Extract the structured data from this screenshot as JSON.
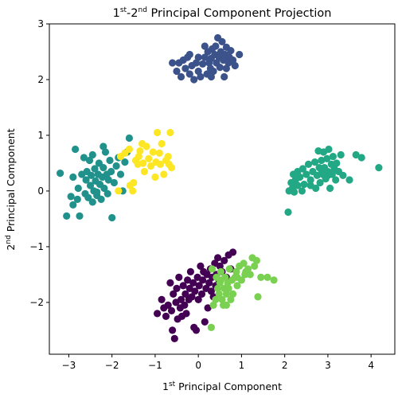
{
  "chart_data": {
    "type": "scatter",
    "title": {
      "p1": "1",
      "s1": "st",
      "p2": "-2",
      "s2": "nd",
      "p3": " Principal Component Projection"
    },
    "xlabel": {
      "pre": "1",
      "sup": "st",
      "post": " Principal Component"
    },
    "ylabel": {
      "pre": "2",
      "sup": "nd",
      "post": " Principal Component"
    },
    "xlim": [
      -3.45,
      4.55
    ],
    "ylim": [
      -2.93,
      3.0
    ],
    "xticks": [
      -3,
      -2,
      -1,
      0,
      1,
      2,
      3,
      4
    ],
    "xtick_labels": [
      "−3",
      "−2",
      "−1",
      "0",
      "1",
      "2",
      "3",
      "4"
    ],
    "yticks": [
      -2,
      -1,
      0,
      1,
      2,
      3
    ],
    "ytick_labels": [
      "−2",
      "−1",
      "0",
      "1",
      "2",
      "3"
    ],
    "grid": false,
    "series": [
      {
        "color": "#3b528b",
        "points": [
          [
            -0.5,
            2.15
          ],
          [
            -0.45,
            2.3
          ],
          [
            -0.4,
            2.05
          ],
          [
            -0.35,
            2.35
          ],
          [
            -0.3,
            2.2
          ],
          [
            -0.25,
            2.4
          ],
          [
            -0.2,
            2.1
          ],
          [
            -0.15,
            2.25
          ],
          [
            -0.1,
            2.0
          ],
          [
            -0.05,
            2.3
          ],
          [
            0.0,
            2.15
          ],
          [
            0.0,
            2.4
          ],
          [
            0.05,
            2.05
          ],
          [
            0.1,
            2.28
          ],
          [
            0.15,
            2.4
          ],
          [
            0.2,
            2.1
          ],
          [
            0.22,
            2.5
          ],
          [
            0.25,
            2.3
          ],
          [
            0.28,
            2.2
          ],
          [
            0.3,
            2.38
          ],
          [
            0.32,
            2.55
          ],
          [
            0.35,
            2.15
          ],
          [
            0.38,
            2.45
          ],
          [
            0.4,
            2.6
          ],
          [
            0.42,
            2.3
          ],
          [
            0.45,
            2.75
          ],
          [
            0.48,
            2.4
          ],
          [
            0.5,
            2.22
          ],
          [
            0.52,
            2.5
          ],
          [
            0.55,
            2.68
          ],
          [
            0.58,
            2.35
          ],
          [
            0.6,
            2.05
          ],
          [
            0.62,
            2.45
          ],
          [
            0.65,
            2.58
          ],
          [
            0.7,
            2.3
          ],
          [
            0.72,
            2.4
          ],
          [
            0.75,
            2.52
          ],
          [
            0.8,
            2.35
          ],
          [
            0.85,
            2.25
          ],
          [
            0.95,
            2.45
          ],
          [
            -0.6,
            2.3
          ],
          [
            0.15,
            2.6
          ],
          [
            -0.2,
            2.45
          ],
          [
            0.65,
            2.2
          ],
          [
            0.3,
            2.05
          ]
        ]
      },
      {
        "color": "#21918c",
        "points": [
          [
            -3.2,
            0.32
          ],
          [
            -3.05,
            -0.45
          ],
          [
            -2.95,
            -0.1
          ],
          [
            -2.9,
            0.25
          ],
          [
            -2.85,
            0.75
          ],
          [
            -2.8,
            -0.15
          ],
          [
            -2.78,
            0.05
          ],
          [
            -2.75,
            -0.45
          ],
          [
            -2.7,
            0.3
          ],
          [
            -2.65,
            0.6
          ],
          [
            -2.62,
            -0.05
          ],
          [
            -2.6,
            0.2
          ],
          [
            -2.58,
            0.35
          ],
          [
            -2.55,
            -0.12
          ],
          [
            -2.52,
            0.55
          ],
          [
            -2.5,
            0.1
          ],
          [
            -2.48,
            0.28
          ],
          [
            -2.45,
            -0.2
          ],
          [
            -2.42,
            0.0
          ],
          [
            -2.4,
            0.4
          ],
          [
            -2.38,
            0.18
          ],
          [
            -2.35,
            -0.08
          ],
          [
            -2.32,
            0.3
          ],
          [
            -2.3,
            0.5
          ],
          [
            -2.28,
            0.12
          ],
          [
            -2.25,
            -0.15
          ],
          [
            -2.22,
            0.25
          ],
          [
            -2.2,
            0.42
          ],
          [
            -2.18,
            0.05
          ],
          [
            -2.15,
            0.7
          ],
          [
            -2.12,
            0.3
          ],
          [
            -2.1,
            -0.05
          ],
          [
            -2.08,
            0.2
          ],
          [
            -2.05,
            0.55
          ],
          [
            -2.02,
            0.35
          ],
          [
            -2.0,
            -0.48
          ],
          [
            -1.95,
            0.15
          ],
          [
            -1.9,
            0.45
          ],
          [
            -1.85,
            0.6
          ],
          [
            -1.8,
            0.3
          ],
          [
            -1.75,
            0.0
          ],
          [
            -1.7,
            0.52
          ],
          [
            -1.65,
            0.7
          ],
          [
            -1.6,
            0.95
          ],
          [
            -2.2,
            0.8
          ],
          [
            -2.45,
            0.65
          ],
          [
            -2.9,
            -0.25
          ],
          [
            -2.35,
            -0.02
          ]
        ]
      },
      {
        "color": "#fde725",
        "points": [
          [
            -1.85,
            0.0
          ],
          [
            -1.8,
            0.62
          ],
          [
            -1.7,
            0.68
          ],
          [
            -1.6,
            0.75
          ],
          [
            -1.58,
            0.1
          ],
          [
            -1.52,
            0.0
          ],
          [
            -1.5,
            0.15
          ],
          [
            -1.45,
            0.55
          ],
          [
            -1.4,
            0.48
          ],
          [
            -1.38,
            0.62
          ],
          [
            -1.35,
            0.72
          ],
          [
            -1.3,
            0.85
          ],
          [
            -1.28,
            0.5
          ],
          [
            -1.25,
            0.35
          ],
          [
            -1.2,
            0.8
          ],
          [
            -1.15,
            0.58
          ],
          [
            -1.1,
            0.45
          ],
          [
            -1.05,
            0.7
          ],
          [
            -1.0,
            0.25
          ],
          [
            -0.98,
            0.52
          ],
          [
            -0.95,
            1.05
          ],
          [
            -0.9,
            0.68
          ],
          [
            -0.88,
            0.48
          ],
          [
            -0.85,
            0.85
          ],
          [
            -0.8,
            0.3
          ],
          [
            -0.75,
            0.55
          ],
          [
            -0.7,
            0.62
          ],
          [
            -0.68,
            0.48
          ],
          [
            -0.65,
            1.05
          ],
          [
            -0.62,
            0.42
          ]
        ]
      },
      {
        "color": "#22a884",
        "points": [
          [
            2.08,
            -0.38
          ],
          [
            2.1,
            0.0
          ],
          [
            2.15,
            0.15
          ],
          [
            2.18,
            0.05
          ],
          [
            2.2,
            0.3
          ],
          [
            2.22,
            -0.02
          ],
          [
            2.25,
            0.2
          ],
          [
            2.3,
            0.1
          ],
          [
            2.35,
            0.25
          ],
          [
            2.4,
            0.0
          ],
          [
            2.42,
            0.4
          ],
          [
            2.45,
            0.12
          ],
          [
            2.5,
            0.3
          ],
          [
            2.55,
            0.48
          ],
          [
            2.6,
            0.2
          ],
          [
            2.65,
            0.35
          ],
          [
            2.7,
            0.52
          ],
          [
            2.72,
            0.05
          ],
          [
            2.75,
            0.28
          ],
          [
            2.78,
            0.72
          ],
          [
            2.8,
            0.42
          ],
          [
            2.82,
            0.15
          ],
          [
            2.85,
            0.55
          ],
          [
            2.88,
            0.3
          ],
          [
            2.9,
            0.7
          ],
          [
            2.92,
            0.42
          ],
          [
            2.95,
            0.22
          ],
          [
            2.98,
            0.58
          ],
          [
            3.0,
            0.35
          ],
          [
            3.02,
            0.75
          ],
          [
            3.05,
            0.05
          ],
          [
            3.08,
            0.48
          ],
          [
            3.1,
            0.3
          ],
          [
            3.12,
            0.62
          ],
          [
            3.15,
            0.4
          ],
          [
            3.18,
            0.2
          ],
          [
            3.2,
            0.5
          ],
          [
            3.25,
            0.35
          ],
          [
            3.3,
            0.65
          ],
          [
            3.35,
            0.28
          ],
          [
            3.5,
            0.2
          ],
          [
            3.65,
            0.65
          ],
          [
            3.78,
            0.6
          ],
          [
            4.18,
            0.42
          ],
          [
            2.3,
            0.35
          ],
          [
            2.6,
            0.1
          ],
          [
            3.0,
            0.28
          ],
          [
            2.85,
            0.38
          ]
        ]
      },
      {
        "color": "#440154",
        "points": [
          [
            -0.95,
            -2.2
          ],
          [
            -0.85,
            -1.95
          ],
          [
            -0.8,
            -2.1
          ],
          [
            -0.75,
            -2.25
          ],
          [
            -0.7,
            -2.05
          ],
          [
            -0.65,
            -1.65
          ],
          [
            -0.62,
            -2.15
          ],
          [
            -0.6,
            -2.5
          ],
          [
            -0.58,
            -1.85
          ],
          [
            -0.55,
            -2.65
          ],
          [
            -0.52,
            -2.0
          ],
          [
            -0.5,
            -1.75
          ],
          [
            -0.48,
            -2.3
          ],
          [
            -0.45,
            -1.55
          ],
          [
            -0.42,
            -2.1
          ],
          [
            -0.4,
            -1.95
          ],
          [
            -0.38,
            -2.25
          ],
          [
            -0.35,
            -1.7
          ],
          [
            -0.32,
            -2.05
          ],
          [
            -0.3,
            -1.85
          ],
          [
            -0.28,
            -2.2
          ],
          [
            -0.25,
            -1.6
          ],
          [
            -0.22,
            -1.95
          ],
          [
            -0.2,
            -1.75
          ],
          [
            -0.18,
            -1.45
          ],
          [
            -0.15,
            -1.9
          ],
          [
            -0.12,
            -1.65
          ],
          [
            -0.1,
            -2.45
          ],
          [
            -0.08,
            -1.8
          ],
          [
            -0.05,
            -2.5
          ],
          [
            -0.02,
            -1.55
          ],
          [
            0.0,
            -1.95
          ],
          [
            0.02,
            -1.7
          ],
          [
            0.05,
            -1.35
          ],
          [
            0.08,
            -1.85
          ],
          [
            0.1,
            -1.6
          ],
          [
            0.12,
            -1.45
          ],
          [
            0.15,
            -2.35
          ],
          [
            0.18,
            -1.75
          ],
          [
            0.2,
            -1.5
          ],
          [
            0.22,
            -2.1
          ],
          [
            0.25,
            -1.65
          ],
          [
            0.28,
            -1.4
          ],
          [
            0.3,
            -1.8
          ],
          [
            0.32,
            -1.55
          ],
          [
            0.35,
            -1.9
          ],
          [
            0.38,
            -1.3
          ],
          [
            0.4,
            -1.7
          ],
          [
            0.42,
            -1.5
          ],
          [
            0.45,
            -1.2
          ],
          [
            0.48,
            -1.6
          ],
          [
            0.5,
            -1.35
          ],
          [
            0.55,
            -1.45
          ],
          [
            0.6,
            -1.25
          ],
          [
            0.65,
            -1.55
          ],
          [
            0.7,
            -1.15
          ],
          [
            0.75,
            -1.4
          ],
          [
            0.8,
            -1.1
          ]
        ]
      },
      {
        "color": "#7ad151",
        "points": [
          [
            0.32,
            -1.4
          ],
          [
            0.35,
            -2.05
          ],
          [
            0.4,
            -1.95
          ],
          [
            0.42,
            -1.55
          ],
          [
            0.45,
            -1.75
          ],
          [
            0.48,
            -1.85
          ],
          [
            0.5,
            -1.65
          ],
          [
            0.52,
            -1.45
          ],
          [
            0.55,
            -1.95
          ],
          [
            0.58,
            -2.05
          ],
          [
            0.6,
            -1.75
          ],
          [
            0.62,
            -1.55
          ],
          [
            0.65,
            -1.85
          ],
          [
            0.68,
            -1.65
          ],
          [
            0.7,
            -1.75
          ],
          [
            0.72,
            -1.4
          ],
          [
            0.75,
            -1.95
          ],
          [
            0.78,
            -1.6
          ],
          [
            0.8,
            -1.85
          ],
          [
            0.85,
            -1.55
          ],
          [
            0.88,
            -1.45
          ],
          [
            0.9,
            -1.7
          ],
          [
            0.95,
            -1.35
          ],
          [
            1.0,
            -1.6
          ],
          [
            1.05,
            -1.3
          ],
          [
            1.08,
            -1.5
          ],
          [
            1.1,
            -1.45
          ],
          [
            1.15,
            -1.4
          ],
          [
            1.2,
            -1.5
          ],
          [
            1.25,
            -1.2
          ],
          [
            1.3,
            -1.35
          ],
          [
            1.35,
            -1.25
          ],
          [
            1.38,
            -1.9
          ],
          [
            1.45,
            -1.55
          ],
          [
            1.6,
            -1.55
          ],
          [
            1.75,
            -1.6
          ],
          [
            0.3,
            -2.45
          ],
          [
            0.65,
            -2.05
          ],
          [
            0.9,
            -1.55
          ],
          [
            0.52,
            -1.6
          ]
        ]
      }
    ]
  }
}
